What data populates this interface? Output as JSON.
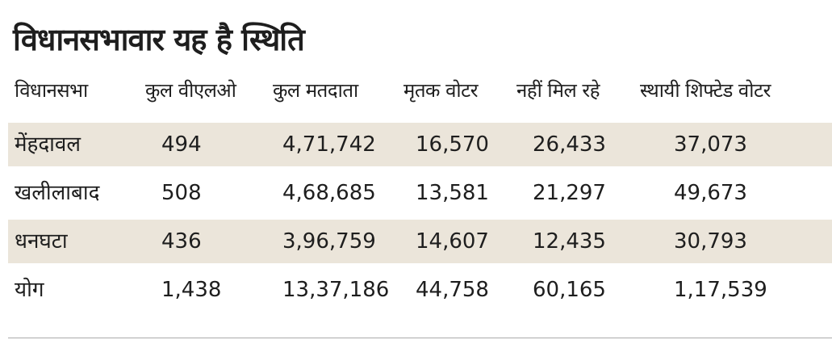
{
  "header": {
    "title": "विधानसभावार यह है स्थिति"
  },
  "table": {
    "columns": [
      "विधानसभा",
      "कुल वीएलओ",
      "कुल मतदाता",
      "मृतक वोटर",
      "नहीं मिल रहे",
      "स्थायी शिफ्टेड वोटर"
    ],
    "rows": [
      [
        "मेंहदावल",
        "494",
        "4,71,742",
        "16,570",
        "26,433",
        "37,073"
      ],
      [
        "खलीलाबाद",
        "508",
        "4,68,685",
        "13,581",
        "21,297",
        "49,673"
      ],
      [
        "धनघटा",
        "436",
        "3,96,759",
        "14,607",
        "12,435",
        "30,793"
      ],
      [
        "योग",
        "1,438",
        "13,37,186",
        "44,758",
        "60,165",
        "1,17,539"
      ]
    ]
  }
}
